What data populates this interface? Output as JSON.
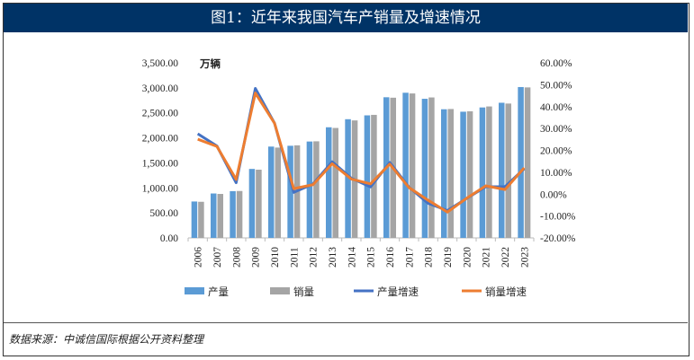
{
  "title": "图1：近年来我国汽车产销量及增速情况",
  "source": "数据来源：中诚信国际根据公开资料整理",
  "chart_data": {
    "type": "bar+line",
    "unit_label": "万辆",
    "categories": [
      "2006",
      "2007",
      "2008",
      "2009",
      "2010",
      "2011",
      "2012",
      "2013",
      "2014",
      "2015",
      "2016",
      "2017",
      "2018",
      "2019",
      "2020",
      "2021",
      "2022",
      "2023"
    ],
    "y_left": {
      "range": [
        0,
        3500
      ],
      "ticks": [
        "0.00",
        "500.00",
        "1,000.00",
        "1,500.00",
        "2,000.00",
        "2,500.00",
        "3,000.00",
        "3,500.00"
      ]
    },
    "y_right": {
      "range": [
        -20,
        60
      ],
      "ticks": [
        "-20.00%",
        "-10.00%",
        "0.00%",
        "10.00%",
        "20.00%",
        "30.00%",
        "40.00%",
        "50.00%",
        "60.00%"
      ]
    },
    "series": [
      {
        "name": "产量",
        "type": "bar",
        "axis": "left",
        "color": "#5b9bd5",
        "values": [
          728,
          888,
          935,
          1379,
          1826,
          1842,
          1927,
          2212,
          2373,
          2450,
          2812,
          2902,
          2781,
          2572,
          2523,
          2608,
          2702,
          3016
        ]
      },
      {
        "name": "销量",
        "type": "bar",
        "axis": "left",
        "color": "#a5a5a5",
        "values": [
          722,
          879,
          938,
          1364,
          1806,
          1851,
          1931,
          2198,
          2349,
          2460,
          2803,
          2888,
          2808,
          2577,
          2531,
          2628,
          2686,
          3009
        ]
      },
      {
        "name": "产量增速",
        "type": "line",
        "axis": "right",
        "color": "#4472c4",
        "values": [
          27.6,
          22.0,
          5.2,
          48.3,
          32.4,
          0.8,
          4.6,
          14.8,
          7.3,
          3.3,
          14.5,
          3.2,
          -4.2,
          -7.5,
          -2.0,
          3.4,
          3.4,
          11.6
        ]
      },
      {
        "name": "销量增速",
        "type": "line",
        "axis": "right",
        "color": "#ed7d31",
        "values": [
          25.1,
          21.8,
          6.7,
          46.2,
          32.4,
          2.5,
          4.3,
          13.9,
          6.9,
          4.7,
          13.7,
          3.0,
          -2.8,
          -8.2,
          -1.9,
          3.8,
          2.1,
          12.0
        ]
      }
    ],
    "legend": "bottom"
  }
}
